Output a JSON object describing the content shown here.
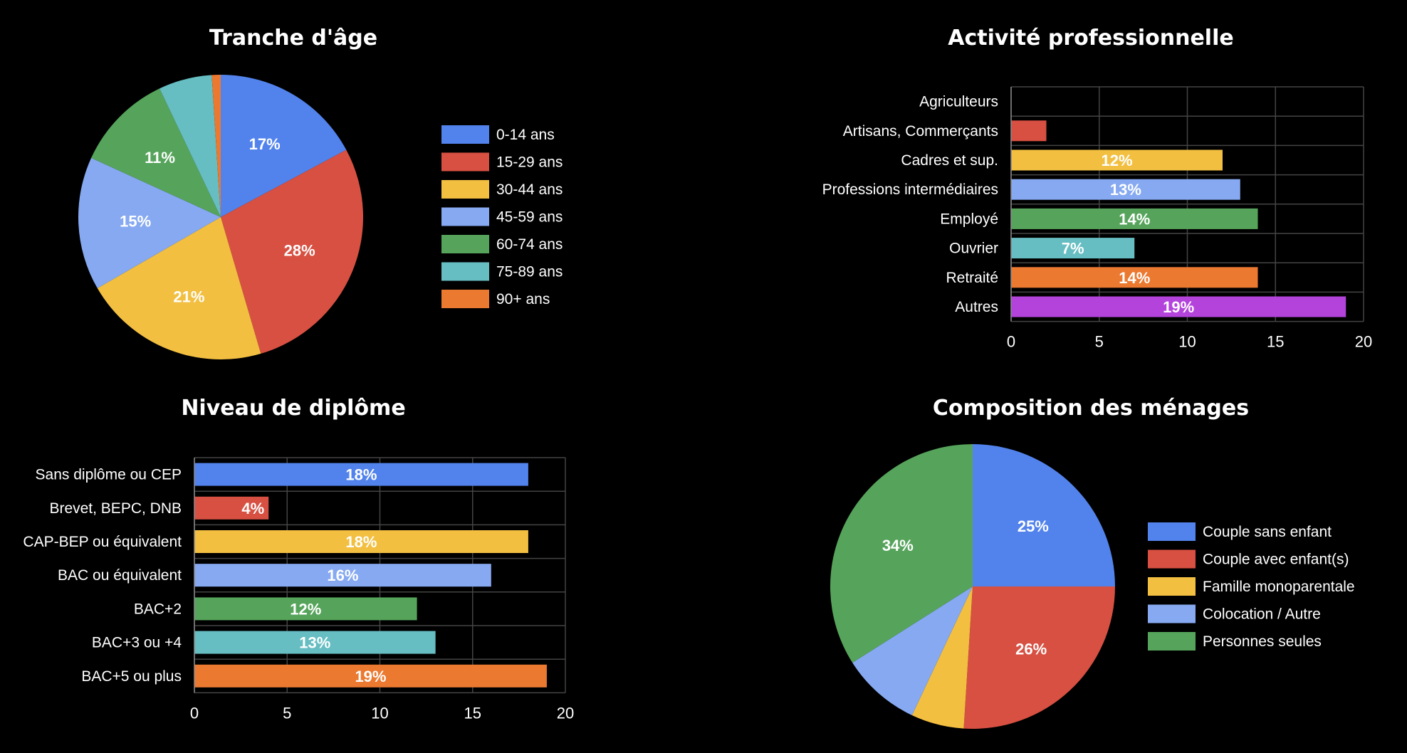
{
  "chart_data": [
    {
      "type": "pie",
      "title": "Tranche d'âge",
      "labels": [
        "0-14 ans",
        "15-29 ans",
        "30-44 ans",
        "45-59 ans",
        "60-74 ans",
        "75-89 ans",
        "90+ ans"
      ],
      "values": [
        17,
        28,
        21,
        15,
        11,
        6,
        1
      ],
      "data_labels": [
        "17%",
        "28%",
        "21%",
        "15%",
        "11%",
        "",
        ""
      ],
      "colors": [
        "#5283EC",
        "#D75042",
        "#F2BF41",
        "#86A9F1",
        "#56A45B",
        "#66BDC2",
        "#EB7930"
      ],
      "legend": "right"
    },
    {
      "type": "bar",
      "orientation": "horizontal",
      "title": "Activité professionnelle",
      "categories": [
        "Agriculteurs",
        "Artisans, Commerçants",
        "Cadres et sup.",
        "Professions intermédiaires",
        "Employé",
        "Ouvrier",
        "Retraité",
        "Autres"
      ],
      "values": [
        0,
        2,
        12,
        13,
        14,
        7,
        14,
        19
      ],
      "data_labels": [
        "",
        "",
        "12%",
        "13%",
        "14%",
        "7%",
        "14%",
        "19%"
      ],
      "colors": [
        "#5283EC",
        "#D75042",
        "#F2BF41",
        "#86A9F1",
        "#56A45B",
        "#66BDC2",
        "#EB7930",
        "#B443DC"
      ],
      "xlim": [
        0,
        20
      ],
      "xticks": [
        0,
        5,
        10,
        15,
        20
      ],
      "grid": true
    },
    {
      "type": "bar",
      "orientation": "horizontal",
      "title": "Niveau de diplôme",
      "categories": [
        "Sans diplôme ou CEP",
        "Brevet, BEPC, DNB",
        "CAP-BEP ou équivalent",
        "BAC ou équivalent",
        "BAC+2",
        "BAC+3 ou +4",
        "BAC+5 ou plus"
      ],
      "values": [
        18,
        4,
        18,
        16,
        12,
        13,
        19
      ],
      "data_labels": [
        "18%",
        "4%",
        "18%",
        "16%",
        "12%",
        "13%",
        "19%"
      ],
      "colors": [
        "#5283EC",
        "#D75042",
        "#F2BF41",
        "#86A9F1",
        "#56A45B",
        "#66BDC2",
        "#EB7930"
      ],
      "xlim": [
        0,
        20
      ],
      "xticks": [
        0,
        5,
        10,
        15,
        20
      ],
      "grid": true
    },
    {
      "type": "pie",
      "title": "Composition des ménages",
      "labels": [
        "Couple sans enfant",
        "Couple avec enfant(s)",
        "Famille monoparentale",
        "Colocation / Autre",
        "Personnes seules"
      ],
      "values": [
        25,
        26,
        6,
        9,
        34
      ],
      "data_labels": [
        "25%",
        "26%",
        "",
        "",
        "34%"
      ],
      "colors": [
        "#5283EC",
        "#D75042",
        "#F2BF41",
        "#86A9F1",
        "#56A45B"
      ],
      "legend": "right"
    }
  ]
}
